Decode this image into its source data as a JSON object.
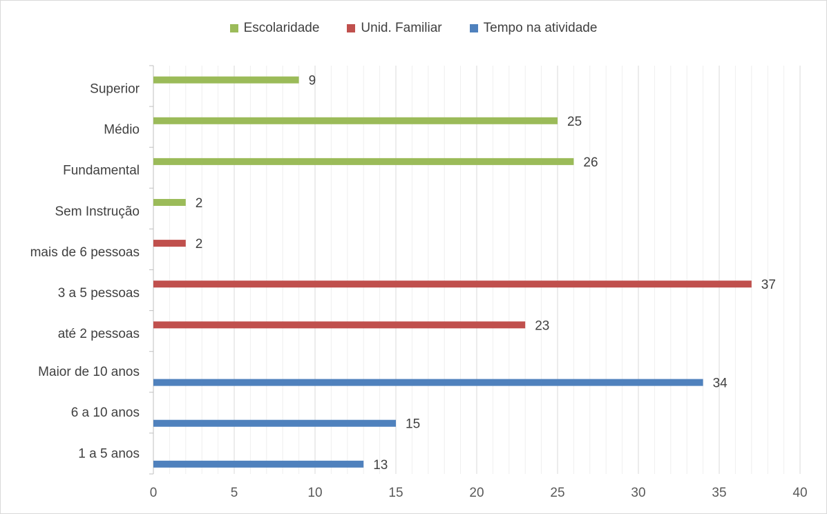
{
  "chart_data": {
    "type": "bar",
    "orientation": "horizontal",
    "xlim": [
      0,
      40
    ],
    "xticks": [
      0,
      5,
      10,
      15,
      20,
      25,
      30,
      35,
      40
    ],
    "grid": true,
    "legend_position": "top",
    "series": [
      {
        "name": "Escolaridade",
        "color": "#9bbb59"
      },
      {
        "name": "Unid. Familiar",
        "color": "#c0504d"
      },
      {
        "name": "Tempo na atividade",
        "color": "#4f81bd"
      }
    ],
    "categories": [
      {
        "label": "Superior",
        "value": 9,
        "series": 0
      },
      {
        "label": "Médio",
        "value": 25,
        "series": 0
      },
      {
        "label": "Fundamental",
        "value": 26,
        "series": 0
      },
      {
        "label": "Sem Instrução",
        "value": 2,
        "series": 0
      },
      {
        "label": "mais de 6 pessoas",
        "value": 2,
        "series": 1
      },
      {
        "label": "3 a 5 pessoas",
        "value": 37,
        "series": 1
      },
      {
        "label": "até 2 pessoas",
        "value": 23,
        "series": 1
      },
      {
        "label": "Maior de 10 anos",
        "value": 34,
        "series": 2
      },
      {
        "label": "6 a 10 anos",
        "value": 15,
        "series": 2
      },
      {
        "label": "1 a 5 anos",
        "value": 13,
        "series": 2
      }
    ]
  }
}
